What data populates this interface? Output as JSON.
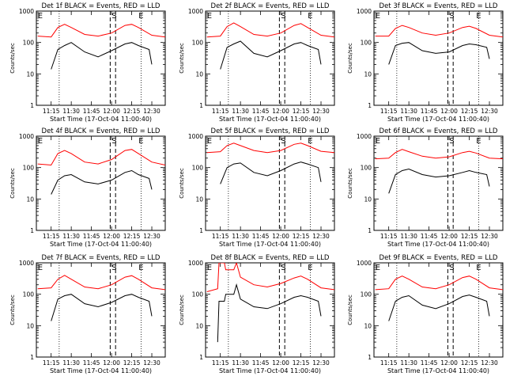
{
  "xlabel": "Start Time (17-Oct-04 11:00:40)",
  "ylabel": "Counts/sec",
  "x_tick_labels": [
    "11:15",
    "11:30",
    "11:45",
    "12:00",
    "12:15",
    "12:30"
  ],
  "y_tick_labels": [
    "1",
    "10",
    "100",
    "1000"
  ],
  "x_ticks_min": [
    15,
    30,
    45,
    60,
    75,
    90
  ],
  "marker_labels": {
    "E": "E",
    "S": "S"
  },
  "colors": {
    "events": "#000000",
    "lld": "#ff0000",
    "axes": "#000000"
  },
  "chart_data": [
    {
      "type": "line",
      "detector": "1f",
      "title": "Det 1f BLACK = Events, RED = LLD",
      "xlim_min": [
        4,
        100
      ],
      "ylim": [
        1,
        1000
      ],
      "y_scale": "log",
      "grid": false,
      "markers_min": {
        "E_start": 5,
        "S": 62,
        "E_end": 82
      },
      "dashed_lines_min": [
        59,
        63
      ],
      "dotted_lines_min": [
        21,
        82
      ],
      "series": [
        {
          "name": "Events",
          "color": "#000000",
          "x": [
            15,
            20,
            25,
            30,
            40,
            50,
            60,
            70,
            75,
            80,
            88,
            90
          ],
          "y": [
            14,
            60,
            80,
            100,
            50,
            35,
            55,
            90,
            100,
            80,
            60,
            20
          ]
        },
        {
          "name": "LLD",
          "color": "#ff0000",
          "x": [
            5,
            15,
            20,
            25,
            30,
            40,
            50,
            60,
            70,
            75,
            80,
            90,
            100
          ],
          "y": [
            160,
            150,
            300,
            380,
            300,
            180,
            160,
            200,
            350,
            380,
            300,
            170,
            150
          ]
        }
      ]
    },
    {
      "type": "line",
      "detector": "2f",
      "title": "Det 2f BLACK = Events, RED = LLD",
      "xlim_min": [
        4,
        100
      ],
      "ylim": [
        1,
        1000
      ],
      "y_scale": "log",
      "grid": false,
      "markers_min": {
        "E_start": 5,
        "S": 62,
        "E_end": 82
      },
      "dashed_lines_min": [
        59,
        63
      ],
      "dotted_lines_min": [
        21,
        82
      ],
      "series": [
        {
          "name": "Events",
          "color": "#000000",
          "x": [
            15,
            20,
            25,
            30,
            40,
            50,
            60,
            70,
            75,
            80,
            88,
            90
          ],
          "y": [
            14,
            70,
            90,
            110,
            45,
            35,
            55,
            90,
            100,
            80,
            60,
            20
          ]
        },
        {
          "name": "LLD",
          "color": "#ff0000",
          "x": [
            5,
            15,
            20,
            25,
            30,
            40,
            50,
            60,
            70,
            75,
            80,
            90,
            100
          ],
          "y": [
            150,
            160,
            320,
            420,
            320,
            180,
            160,
            200,
            350,
            400,
            300,
            170,
            150
          ]
        }
      ]
    },
    {
      "type": "line",
      "detector": "3f",
      "title": "Det 3f BLACK = Events, RED = LLD",
      "xlim_min": [
        4,
        100
      ],
      "ylim": [
        1,
        1000
      ],
      "y_scale": "log",
      "grid": false,
      "markers_min": {
        "E_start": 5,
        "S": 62,
        "E_end": 82
      },
      "dashed_lines_min": [
        59,
        63
      ],
      "dotted_lines_min": [
        21,
        82
      ],
      "series": [
        {
          "name": "Events",
          "color": "#000000",
          "x": [
            15,
            20,
            25,
            30,
            40,
            50,
            60,
            70,
            75,
            80,
            88,
            90
          ],
          "y": [
            20,
            80,
            95,
            100,
            55,
            45,
            50,
            80,
            90,
            85,
            70,
            30
          ]
        },
        {
          "name": "LLD",
          "color": "#ff0000",
          "x": [
            5,
            15,
            20,
            25,
            30,
            40,
            50,
            60,
            70,
            75,
            80,
            90,
            100
          ],
          "y": [
            160,
            160,
            280,
            350,
            300,
            200,
            170,
            200,
            300,
            330,
            280,
            170,
            150
          ]
        }
      ]
    },
    {
      "type": "line",
      "detector": "4f",
      "title": "Det 4f BLACK = Events, RED = LLD",
      "xlim_min": [
        4,
        100
      ],
      "ylim": [
        1,
        1000
      ],
      "y_scale": "log",
      "grid": false,
      "markers_min": {
        "E_start": 5,
        "S": 62,
        "E_end": 82
      },
      "dashed_lines_min": [
        59,
        63
      ],
      "dotted_lines_min": [
        21,
        82
      ],
      "series": [
        {
          "name": "Events",
          "color": "#000000",
          "x": [
            15,
            20,
            25,
            30,
            40,
            50,
            60,
            70,
            75,
            80,
            88,
            90
          ],
          "y": [
            14,
            40,
            55,
            60,
            35,
            30,
            40,
            70,
            80,
            60,
            45,
            20
          ]
        },
        {
          "name": "LLD",
          "color": "#ff0000",
          "x": [
            5,
            15,
            20,
            25,
            30,
            40,
            50,
            60,
            70,
            75,
            80,
            90,
            100
          ],
          "y": [
            130,
            120,
            280,
            350,
            280,
            150,
            130,
            180,
            350,
            380,
            280,
            150,
            120
          ]
        }
      ]
    },
    {
      "type": "line",
      "detector": "5f",
      "title": "Det 5f BLACK = Events, RED = LLD",
      "xlim_min": [
        4,
        100
      ],
      "ylim": [
        1,
        1000
      ],
      "y_scale": "log",
      "grid": false,
      "markers_min": {
        "E_start": 5,
        "S": 62,
        "E_end": 82
      },
      "dashed_lines_min": [
        59,
        63
      ],
      "dotted_lines_min": [
        21,
        82
      ],
      "series": [
        {
          "name": "Events",
          "color": "#000000",
          "x": [
            15,
            20,
            25,
            30,
            40,
            50,
            60,
            70,
            75,
            80,
            88,
            90
          ],
          "y": [
            30,
            100,
            130,
            140,
            70,
            55,
            80,
            130,
            150,
            130,
            100,
            35
          ]
        },
        {
          "name": "LLD",
          "color": "#ff0000",
          "x": [
            5,
            15,
            20,
            25,
            30,
            40,
            50,
            60,
            70,
            75,
            80,
            90,
            100
          ],
          "y": [
            300,
            320,
            500,
            600,
            500,
            350,
            300,
            350,
            550,
            600,
            500,
            330,
            300
          ]
        }
      ]
    },
    {
      "type": "line",
      "detector": "6f",
      "title": "Det 6f BLACK = Events, RED = LLD",
      "xlim_min": [
        4,
        100
      ],
      "ylim": [
        1,
        1000
      ],
      "y_scale": "log",
      "grid": false,
      "markers_min": {
        "E_start": 5,
        "S": 62,
        "E_end": 82
      },
      "dashed_lines_min": [
        59,
        63
      ],
      "dotted_lines_min": [
        21,
        82
      ],
      "series": [
        {
          "name": "Events",
          "color": "#000000",
          "x": [
            15,
            20,
            25,
            30,
            40,
            50,
            60,
            70,
            75,
            80,
            88,
            90
          ],
          "y": [
            15,
            60,
            80,
            90,
            60,
            50,
            55,
            70,
            80,
            70,
            60,
            25
          ]
        },
        {
          "name": "LLD",
          "color": "#ff0000",
          "x": [
            5,
            15,
            20,
            25,
            30,
            40,
            50,
            60,
            70,
            75,
            80,
            90,
            100
          ],
          "y": [
            190,
            200,
            300,
            380,
            320,
            230,
            200,
            220,
            300,
            330,
            290,
            200,
            190
          ]
        }
      ]
    },
    {
      "type": "line",
      "detector": "7f",
      "title": "Det 7f BLACK = Events, RED = LLD",
      "xlim_min": [
        4,
        100
      ],
      "ylim": [
        1,
        1000
      ],
      "y_scale": "log",
      "grid": false,
      "markers_min": {
        "E_start": 5,
        "S": 62,
        "E_end": 82
      },
      "dashed_lines_min": [
        59,
        63
      ],
      "dotted_lines_min": [
        21,
        82
      ],
      "series": [
        {
          "name": "Events",
          "color": "#000000",
          "x": [
            15,
            20,
            25,
            30,
            40,
            50,
            60,
            70,
            75,
            80,
            88,
            90
          ],
          "y": [
            14,
            70,
            90,
            100,
            50,
            40,
            55,
            90,
            100,
            80,
            60,
            20
          ]
        },
        {
          "name": "LLD",
          "color": "#ff0000",
          "x": [
            5,
            15,
            20,
            25,
            30,
            40,
            50,
            60,
            70,
            75,
            80,
            90,
            100
          ],
          "y": [
            150,
            160,
            300,
            400,
            300,
            170,
            150,
            200,
            350,
            390,
            300,
            160,
            140
          ]
        }
      ]
    },
    {
      "type": "line",
      "detector": "8f",
      "title": "Det 8f BLACK = Events, RED = LLD",
      "xlim_min": [
        4,
        100
      ],
      "ylim": [
        1,
        1000
      ],
      "y_scale": "log",
      "grid": false,
      "markers_min": {
        "E_start": 5,
        "S": 62,
        "E_end": 82
      },
      "dashed_lines_min": [
        59,
        63
      ],
      "dotted_lines_min": [
        21,
        82
      ],
      "series": [
        {
          "name": "Events",
          "color": "#000000",
          "x": [
            13,
            14,
            18,
            19,
            25,
            27,
            30,
            40,
            50,
            60,
            70,
            75,
            80,
            88,
            90
          ],
          "y": [
            3,
            60,
            60,
            100,
            100,
            200,
            70,
            40,
            35,
            50,
            80,
            90,
            80,
            60,
            20
          ]
        },
        {
          "name": "LLD",
          "color": "#ff0000",
          "x": [
            5,
            13,
            14,
            18,
            19,
            25,
            27,
            30,
            40,
            50,
            60,
            70,
            75,
            80,
            90,
            100
          ],
          "y": [
            120,
            150,
            1000,
            1000,
            600,
            600,
            1000,
            350,
            200,
            170,
            220,
            330,
            380,
            300,
            160,
            140
          ]
        }
      ]
    },
    {
      "type": "line",
      "detector": "9f",
      "title": "Det 9f BLACK = Events, RED = LLD",
      "xlim_min": [
        4,
        100
      ],
      "ylim": [
        1,
        1000
      ],
      "y_scale": "log",
      "grid": false,
      "markers_min": {
        "E_start": 5,
        "S": 62,
        "E_end": 82
      },
      "dashed_lines_min": [
        59,
        63
      ],
      "dotted_lines_min": [
        21,
        82
      ],
      "series": [
        {
          "name": "Events",
          "color": "#000000",
          "x": [
            15,
            20,
            25,
            30,
            40,
            50,
            60,
            70,
            75,
            80,
            88,
            90
          ],
          "y": [
            14,
            60,
            80,
            90,
            45,
            35,
            50,
            85,
            95,
            80,
            60,
            20
          ]
        },
        {
          "name": "LLD",
          "color": "#ff0000",
          "x": [
            5,
            15,
            20,
            25,
            30,
            40,
            50,
            60,
            70,
            75,
            80,
            90,
            100
          ],
          "y": [
            140,
            150,
            300,
            380,
            300,
            170,
            150,
            200,
            340,
            380,
            300,
            160,
            140
          ]
        }
      ]
    }
  ]
}
